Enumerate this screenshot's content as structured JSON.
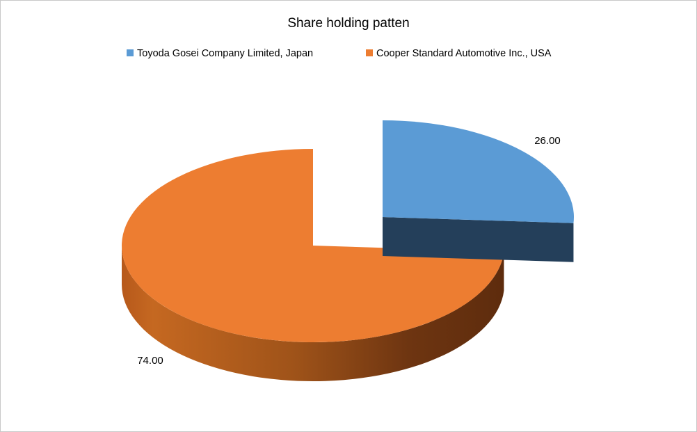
{
  "chart_data": {
    "type": "pie",
    "title": "Share holding patten",
    "legend_position": "top",
    "exploded_slice": "Toyoda Gosei Company Limited, Japan",
    "slices": [
      {
        "label": "Toyoda Gosei Company Limited, Japan",
        "value": 26.0,
        "value_label": "26.00",
        "color": "#5b9bd5",
        "side_color": "#243f5a"
      },
      {
        "label": "Cooper Standard Automotive Inc., USA",
        "value": 74.0,
        "value_label": "74.00",
        "color": "#ed7d31",
        "side_color": "#8a4414"
      }
    ]
  }
}
